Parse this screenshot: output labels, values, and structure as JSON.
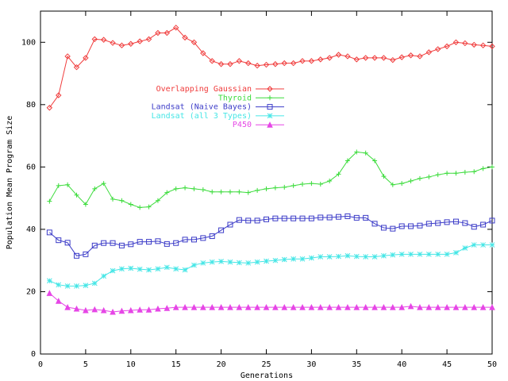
{
  "chart_data": {
    "type": "line",
    "xlabel": "Generations",
    "ylabel": "Population Mean Program Size",
    "x": [
      1,
      2,
      3,
      4,
      5,
      6,
      7,
      8,
      9,
      10,
      11,
      12,
      13,
      14,
      15,
      16,
      17,
      18,
      19,
      20,
      21,
      22,
      23,
      24,
      25,
      26,
      27,
      28,
      29,
      30,
      31,
      32,
      33,
      34,
      35,
      36,
      37,
      38,
      39,
      40,
      41,
      42,
      43,
      44,
      45,
      46,
      47,
      48,
      49,
      50
    ],
    "xlim": [
      0,
      50
    ],
    "xticks": [
      0,
      5,
      10,
      15,
      20,
      25,
      30,
      35,
      40,
      45,
      50
    ],
    "ylim": [
      0,
      110
    ],
    "yticks": [
      0,
      20,
      40,
      60,
      80,
      100
    ],
    "legend": "upper left",
    "series": [
      {
        "name": "Overlapping Gaussian",
        "color": "#f03c3c",
        "marker": "diamond",
        "values": [
          79,
          83,
          95.5,
          92,
          95,
          101,
          100.8,
          99.8,
          99,
          99.5,
          100.3,
          101,
          103,
          103,
          104.7,
          101.5,
          100,
          96.5,
          94,
          93,
          93,
          94,
          93.3,
          92.5,
          92.8,
          93,
          93.3,
          93.3,
          94,
          94,
          94.5,
          95,
          96,
          95.5,
          94.5,
          95,
          95,
          95,
          94.3,
          95.2,
          95.8,
          95.5,
          96.8,
          97.8,
          98.7,
          100,
          99.7,
          99.2,
          99,
          98.7
        ]
      },
      {
        "name": "Thyroid",
        "color": "#3cdc3c",
        "marker": "plus",
        "values": [
          49,
          54,
          54.3,
          51,
          48,
          53,
          54.7,
          49.7,
          49.2,
          48,
          47,
          47.2,
          49.2,
          51.8,
          53,
          53.3,
          53,
          52.7,
          52,
          52,
          52,
          52,
          51.8,
          52.5,
          53,
          53.3,
          53.5,
          54,
          54.5,
          54.7,
          54.5,
          55.5,
          57.7,
          62,
          64.8,
          64.5,
          62,
          57,
          54.3,
          54.7,
          55.5,
          56.3,
          56.8,
          57.5,
          58,
          58,
          58.3,
          58.5,
          59.5,
          60
        ]
      },
      {
        "name": "Landsat (Naive Bayes)",
        "color": "#3c3cc8",
        "marker": "square",
        "values": [
          39,
          36.5,
          35.7,
          31.5,
          32,
          34.8,
          35.6,
          35.6,
          34.8,
          35.2,
          36,
          36,
          36.2,
          35.3,
          35.6,
          36.7,
          36.7,
          37.2,
          37.8,
          39.7,
          41.5,
          43,
          42.8,
          42.8,
          43.2,
          43.5,
          43.5,
          43.5,
          43.5,
          43.5,
          43.8,
          43.8,
          44,
          44.2,
          43.7,
          43.7,
          41.8,
          40.5,
          40.2,
          41,
          41,
          41.2,
          41.8,
          42,
          42.3,
          42.5,
          42,
          40.8,
          41.5,
          42.8
        ]
      },
      {
        "name": "Landsat (all 3 Types)",
        "color": "#46e6e6",
        "marker": "star",
        "values": [
          23.5,
          22.2,
          21.8,
          21.8,
          22,
          22.7,
          25,
          26.7,
          27.3,
          27.5,
          27.2,
          27,
          27.3,
          27.8,
          27.3,
          27,
          28.5,
          29.2,
          29.5,
          29.7,
          29.5,
          29.3,
          29.2,
          29.5,
          29.8,
          30,
          30.3,
          30.5,
          30.5,
          30.8,
          31.2,
          31.2,
          31.3,
          31.5,
          31.3,
          31.2,
          31.2,
          31.5,
          31.8,
          32,
          32,
          32,
          32,
          32,
          32,
          32.5,
          34,
          35,
          35,
          35
        ]
      },
      {
        "name": "P450",
        "color": "#e646e6",
        "marker": "triangle",
        "values": [
          19.5,
          17,
          15,
          14.5,
          14,
          14.3,
          14,
          13.5,
          13.8,
          14,
          14.2,
          14.2,
          14.5,
          14.7,
          15,
          15,
          15,
          15,
          15,
          15,
          15,
          15,
          15,
          15,
          15,
          15,
          15,
          15,
          15,
          15,
          15,
          15,
          15,
          15,
          15,
          15,
          15,
          15,
          15,
          15,
          15.3,
          15,
          15,
          15,
          15,
          15,
          15,
          15,
          15,
          15
        ]
      }
    ]
  }
}
